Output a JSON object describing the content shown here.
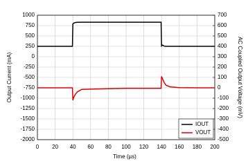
{
  "chart_data": {
    "type": "line",
    "xlabel": "Time (µs)",
    "ylabel": "Output Current (mA)",
    "y2label": "AC Coupled Output Voltage (mV)",
    "x": [
      0,
      39.5,
      40,
      41,
      43,
      45,
      50,
      100,
      139.5,
      140,
      141,
      143,
      145,
      150,
      160,
      180,
      200
    ],
    "series": [
      {
        "name": "IOUT",
        "color": "#000000",
        "values": [
          250,
          250,
          790,
          810,
          825,
          830,
          832,
          832,
          832,
          260,
          280,
          255,
          250,
          250,
          250,
          250,
          250
        ]
      },
      {
        "name": "VOUT",
        "color": "#e00000",
        "axis": "y2",
        "values": [
          0,
          0,
          -120,
          -90,
          -60,
          -40,
          -15,
          -5,
          -5,
          110,
          90,
          50,
          25,
          8,
          2,
          0,
          0
        ]
      }
    ],
    "xlim": [
      0,
      200
    ],
    "xticks": [
      0,
      20,
      40,
      60,
      80,
      100,
      120,
      140,
      160,
      180,
      200
    ],
    "ylim": [
      -2000,
      1000
    ],
    "yticks": [
      -2000,
      -1750,
      -1500,
      -1250,
      -1000,
      -750,
      -500,
      -250,
      0,
      250,
      500,
      750,
      1000
    ],
    "y2lim": [
      -500,
      700
    ],
    "y2ticks": [
      -500,
      -400,
      -300,
      -200,
      -100,
      0,
      100,
      200,
      300,
      400,
      500,
      600,
      700
    ],
    "grid": true,
    "legend": "lower right"
  }
}
